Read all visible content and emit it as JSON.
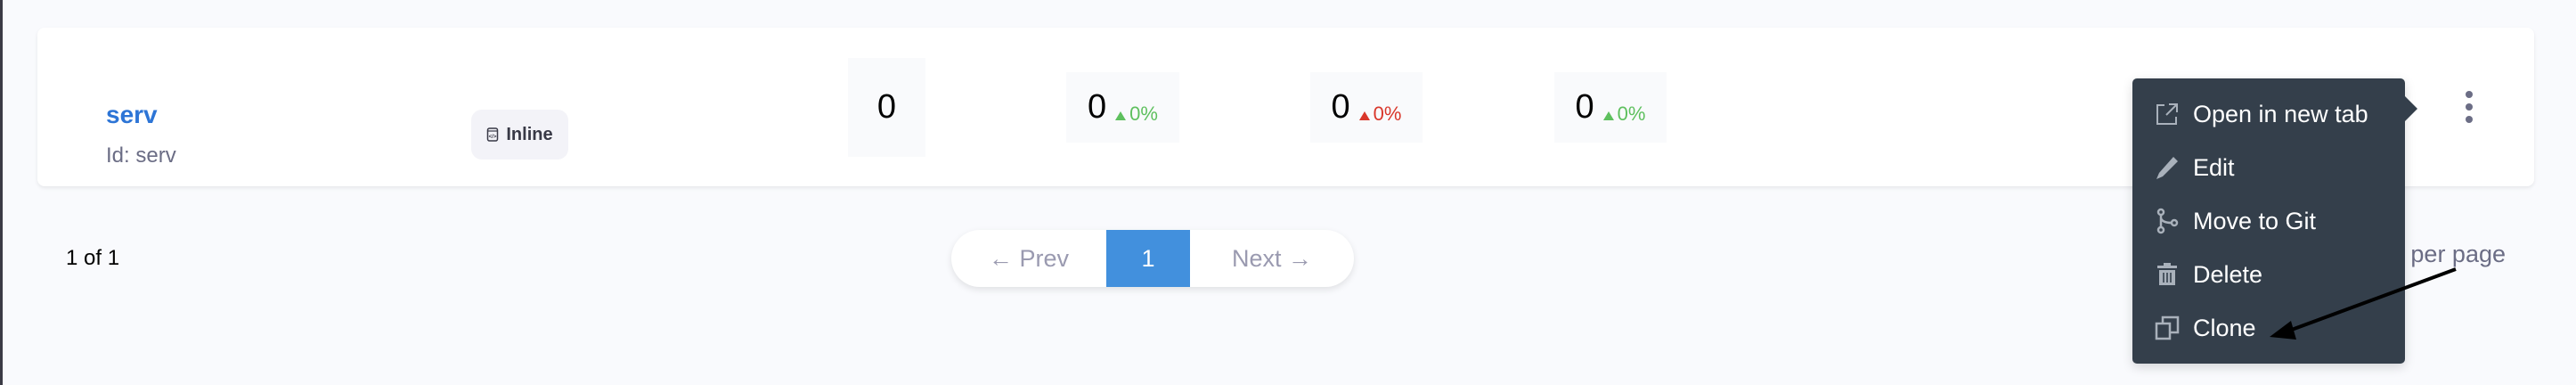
{
  "row": {
    "name": "serv",
    "id_label": "Id: serv",
    "badge": "Inline",
    "metrics": [
      {
        "value": "0"
      },
      {
        "value": "0",
        "change": "0%",
        "trend": "up",
        "color": "#5ec05e"
      },
      {
        "value": "0",
        "change": "0%",
        "trend": "up",
        "color": "#d9372b"
      },
      {
        "value": "0",
        "change": "0%",
        "trend": "up",
        "color": "#5ec05e"
      }
    ]
  },
  "pagination": {
    "info": "1 of 1",
    "prev": "← Prev",
    "current": "1",
    "next": "Next →",
    "per_page": "per page"
  },
  "menu": {
    "items": [
      {
        "label": "Open in new tab",
        "icon": "external-link-icon"
      },
      {
        "label": "Edit",
        "icon": "pencil-icon"
      },
      {
        "label": "Move to Git",
        "icon": "git-branch-icon"
      },
      {
        "label": "Delete",
        "icon": "trash-icon"
      },
      {
        "label": "Clone",
        "icon": "clone-icon"
      }
    ]
  },
  "colors": {
    "accent": "#4290dd",
    "link": "#2d75d6",
    "menu_bg": "#343f4b"
  }
}
